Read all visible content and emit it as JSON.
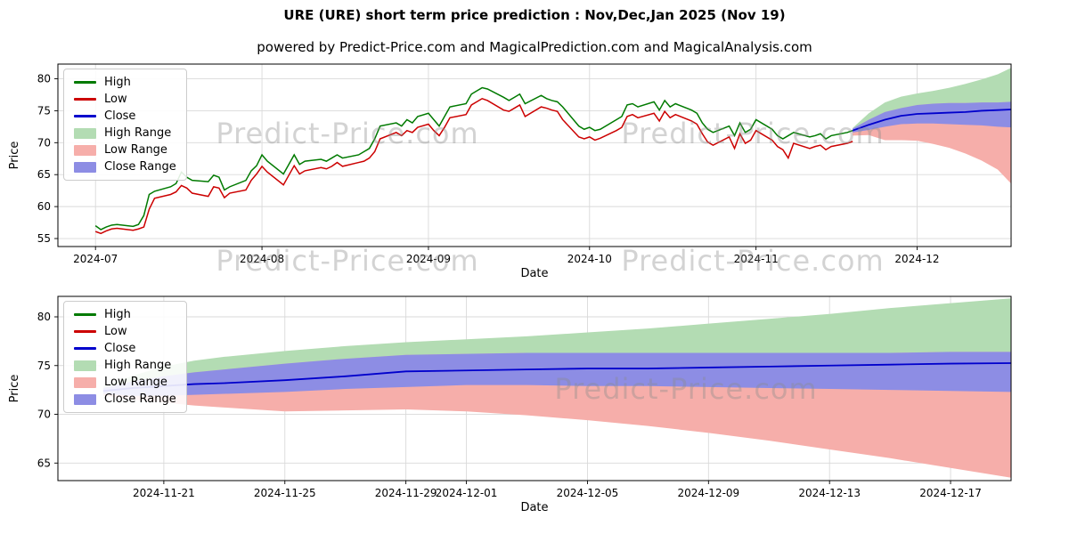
{
  "watermark": "Predict-Price.com",
  "colors": {
    "high_line": "#007a00",
    "low_line": "#cc0000",
    "close_line": "#0000cc",
    "high_range": "#b3dcb3",
    "low_range": "#f6aeaa",
    "close_range": "#8d8de4",
    "grid": "#d9d9d9",
    "frame": "#000000"
  },
  "legend": {
    "items": [
      {
        "label": "High",
        "swatch": "line",
        "color": "#007a00"
      },
      {
        "label": "Low",
        "swatch": "line",
        "color": "#cc0000"
      },
      {
        "label": "Close",
        "swatch": "line",
        "color": "#0000cc"
      },
      {
        "label": "High Range",
        "swatch": "band",
        "color": "#b3dcb3"
      },
      {
        "label": "Low Range",
        "swatch": "band",
        "color": "#f6aeaa"
      },
      {
        "label": "Close Range",
        "swatch": "band",
        "color": "#8d8de4"
      }
    ]
  },
  "chart_data": [
    {
      "type": "line",
      "title": "URE (URE) short term price prediction : Nov,Dec,Jan 2025 (Nov 19)",
      "subtitle": "powered by Predict-Price.com and MagicalPrediction.com and MagicalAnalysis.com",
      "xlabel": "Date",
      "ylabel": "Price",
      "legend_entries": [
        "High",
        "Low",
        "Close",
        "High Range",
        "Low Range",
        "Close Range"
      ],
      "xlim": [
        -3,
        174.5
      ],
      "ylim": [
        53.75,
        82.3
      ],
      "y_ticks": [
        55,
        60,
        65,
        70,
        75,
        80
      ],
      "x_ticks": [
        {
          "t": 4,
          "label": "2024-07"
        },
        {
          "t": 35,
          "label": "2024-08"
        },
        {
          "t": 66,
          "label": "2024-09"
        },
        {
          "t": 96,
          "label": "2024-10"
        },
        {
          "t": 127,
          "label": "2024-11"
        },
        {
          "t": 157,
          "label": "2024-12"
        }
      ],
      "hist_columns": [
        "day",
        "high",
        "low"
      ],
      "hist": [
        [
          4,
          57.0,
          56.1
        ],
        [
          5,
          56.4,
          55.8
        ],
        [
          6,
          56.8,
          56.2
        ],
        [
          7,
          57.1,
          56.5
        ],
        [
          8,
          57.2,
          56.6
        ],
        [
          11,
          56.9,
          56.3
        ],
        [
          12,
          57.2,
          56.5
        ],
        [
          13,
          58.6,
          56.8
        ],
        [
          14,
          61.9,
          59.6
        ],
        [
          15,
          62.4,
          61.3
        ],
        [
          18,
          63.1,
          61.9
        ],
        [
          19,
          63.6,
          62.3
        ],
        [
          20,
          65.4,
          63.3
        ],
        [
          21,
          64.6,
          62.9
        ],
        [
          22,
          64.1,
          62.1
        ],
        [
          25,
          63.9,
          61.6
        ],
        [
          26,
          64.9,
          63.1
        ],
        [
          27,
          64.6,
          62.9
        ],
        [
          28,
          62.6,
          61.4
        ],
        [
          29,
          63.1,
          62.1
        ],
        [
          32,
          64.1,
          62.6
        ],
        [
          33,
          65.6,
          64.1
        ],
        [
          34,
          66.4,
          65.1
        ],
        [
          35,
          68.1,
          66.3
        ],
        [
          36,
          67.1,
          65.4
        ],
        [
          39,
          65.1,
          63.4
        ],
        [
          40,
          66.6,
          64.9
        ],
        [
          41,
          68.1,
          66.4
        ],
        [
          42,
          66.6,
          65.1
        ],
        [
          43,
          67.1,
          65.6
        ],
        [
          46,
          67.4,
          66.1
        ],
        [
          47,
          67.1,
          65.9
        ],
        [
          48,
          67.6,
          66.3
        ],
        [
          49,
          68.1,
          66.9
        ],
        [
          50,
          67.6,
          66.3
        ],
        [
          53,
          68.1,
          66.9
        ],
        [
          54,
          68.6,
          67.1
        ],
        [
          55,
          69.1,
          67.6
        ],
        [
          56,
          70.6,
          68.6
        ],
        [
          57,
          72.6,
          70.6
        ],
        [
          60,
          73.1,
          71.6
        ],
        [
          61,
          72.6,
          71.1
        ],
        [
          62,
          73.6,
          71.9
        ],
        [
          63,
          73.1,
          71.6
        ],
        [
          64,
          74.1,
          72.4
        ],
        [
          66,
          74.6,
          72.9
        ],
        [
          67,
          73.6,
          71.9
        ],
        [
          68,
          72.6,
          71.1
        ],
        [
          69,
          74.1,
          72.4
        ],
        [
          70,
          75.6,
          73.9
        ],
        [
          73,
          76.1,
          74.4
        ],
        [
          74,
          77.6,
          75.9
        ],
        [
          75,
          78.1,
          76.4
        ],
        [
          76,
          78.6,
          76.9
        ],
        [
          77,
          78.4,
          76.6
        ],
        [
          80,
          77.1,
          75.1
        ],
        [
          81,
          76.6,
          74.9
        ],
        [
          82,
          77.1,
          75.4
        ],
        [
          83,
          77.6,
          75.9
        ],
        [
          84,
          76.1,
          74.1
        ],
        [
          87,
          77.4,
          75.6
        ],
        [
          88,
          76.9,
          75.4
        ],
        [
          89,
          76.6,
          75.1
        ],
        [
          90,
          76.4,
          74.9
        ],
        [
          91,
          75.6,
          73.6
        ],
        [
          94,
          72.6,
          70.9
        ],
        [
          95,
          72.1,
          70.6
        ],
        [
          96,
          72.4,
          70.9
        ],
        [
          97,
          71.9,
          70.4
        ],
        [
          98,
          72.1,
          70.7
        ],
        [
          101,
          73.6,
          71.9
        ],
        [
          102,
          74.1,
          72.4
        ],
        [
          103,
          75.9,
          74.1
        ],
        [
          104,
          76.1,
          74.4
        ],
        [
          105,
          75.6,
          73.9
        ],
        [
          108,
          76.4,
          74.6
        ],
        [
          109,
          75.1,
          73.4
        ],
        [
          110,
          76.6,
          74.9
        ],
        [
          111,
          75.6,
          73.9
        ],
        [
          112,
          76.1,
          74.4
        ],
        [
          115,
          75.1,
          73.4
        ],
        [
          116,
          74.6,
          72.9
        ],
        [
          117,
          73.1,
          71.4
        ],
        [
          118,
          72.1,
          70.1
        ],
        [
          119,
          71.6,
          69.6
        ],
        [
          122,
          72.6,
          70.9
        ],
        [
          123,
          71.1,
          69.1
        ],
        [
          124,
          73.1,
          71.4
        ],
        [
          125,
          71.6,
          69.9
        ],
        [
          126,
          72.1,
          70.4
        ],
        [
          127,
          73.6,
          71.9
        ],
        [
          130,
          72.1,
          70.4
        ],
        [
          131,
          71.1,
          69.4
        ],
        [
          132,
          70.6,
          68.9
        ],
        [
          133,
          71.1,
          67.6
        ],
        [
          134,
          71.6,
          69.9
        ],
        [
          137,
          70.9,
          69.1
        ],
        [
          138,
          71.1,
          69.4
        ],
        [
          139,
          71.4,
          69.6
        ],
        [
          140,
          70.6,
          68.9
        ],
        [
          141,
          71.1,
          69.4
        ],
        [
          144,
          71.6,
          69.9
        ],
        [
          145,
          71.9,
          70.2
        ]
      ],
      "forecast_columns": [
        "day",
        "close",
        "close_lower",
        "close_upper",
        "low_lower",
        "high_upper"
      ],
      "forecast": [
        [
          145,
          71.9,
          71.6,
          72.2,
          71.1,
          72.3
        ],
        [
          148,
          72.8,
          72.0,
          73.6,
          71.2,
          74.6
        ],
        [
          151,
          73.6,
          72.5,
          74.8,
          70.4,
          76.3
        ],
        [
          154,
          74.2,
          72.9,
          75.4,
          70.4,
          77.2
        ],
        [
          157,
          74.5,
          73.0,
          75.9,
          70.3,
          77.7
        ],
        [
          160,
          74.6,
          73.0,
          76.1,
          69.8,
          78.1
        ],
        [
          163,
          74.7,
          72.9,
          76.2,
          69.2,
          78.6
        ],
        [
          166,
          74.8,
          72.8,
          76.2,
          68.3,
          79.2
        ],
        [
          169,
          75.0,
          72.7,
          76.3,
          67.2,
          79.9
        ],
        [
          172,
          75.1,
          72.5,
          76.3,
          65.8,
          80.7
        ],
        [
          174.5,
          75.2,
          72.4,
          76.4,
          63.6,
          81.7
        ]
      ]
    },
    {
      "type": "line",
      "title": "",
      "xlabel": "Date",
      "ylabel": "Price",
      "legend_entries": [
        "High",
        "Low",
        "Close",
        "High Range",
        "Low Range",
        "Close Range"
      ],
      "xlim": [
        -1.5,
        30
      ],
      "ylim": [
        63.2,
        82.1
      ],
      "y_ticks": [
        65,
        70,
        75,
        80
      ],
      "x_ticks": [
        {
          "t": 2,
          "label": "2024-11-21"
        },
        {
          "t": 6,
          "label": "2024-11-25"
        },
        {
          "t": 10,
          "label": "2024-11-29"
        },
        {
          "t": 12,
          "label": "2024-12-01"
        },
        {
          "t": 16,
          "label": "2024-12-05"
        },
        {
          "t": 20,
          "label": "2024-12-09"
        },
        {
          "t": 24,
          "label": "2024-12-13"
        },
        {
          "t": 28,
          "label": "2024-12-17"
        }
      ],
      "forecast_columns": [
        "day",
        "close",
        "close_lower",
        "close_upper",
        "low_lower",
        "high_upper"
      ],
      "forecast": [
        [
          0,
          72.4,
          72.1,
          72.7,
          71.9,
          72.9
        ],
        [
          1,
          72.7,
          71.9,
          73.4,
          71.5,
          74.0
        ],
        [
          2,
          72.9,
          71.9,
          73.9,
          71.2,
          74.9
        ],
        [
          3,
          73.1,
          72.0,
          74.3,
          70.9,
          75.5
        ],
        [
          4,
          73.2,
          72.1,
          74.6,
          70.7,
          75.9
        ],
        [
          6,
          73.5,
          72.3,
          75.2,
          70.3,
          76.5
        ],
        [
          8,
          73.9,
          72.6,
          75.7,
          70.4,
          77.0
        ],
        [
          10,
          74.4,
          72.8,
          76.1,
          70.5,
          77.4
        ],
        [
          12,
          74.5,
          73.0,
          76.2,
          70.3,
          77.7
        ],
        [
          14,
          74.6,
          73.0,
          76.3,
          69.9,
          78.0
        ],
        [
          16,
          74.7,
          72.9,
          76.3,
          69.4,
          78.4
        ],
        [
          18,
          74.7,
          72.9,
          76.3,
          68.8,
          78.8
        ],
        [
          20,
          74.8,
          72.8,
          76.3,
          68.1,
          79.3
        ],
        [
          22,
          74.9,
          72.7,
          76.3,
          67.3,
          79.8
        ],
        [
          24,
          75.0,
          72.6,
          76.3,
          66.4,
          80.3
        ],
        [
          26,
          75.1,
          72.5,
          76.3,
          65.5,
          80.9
        ],
        [
          28,
          75.2,
          72.4,
          76.4,
          64.5,
          81.4
        ],
        [
          30,
          75.25,
          72.3,
          76.4,
          63.5,
          81.9
        ]
      ]
    }
  ]
}
